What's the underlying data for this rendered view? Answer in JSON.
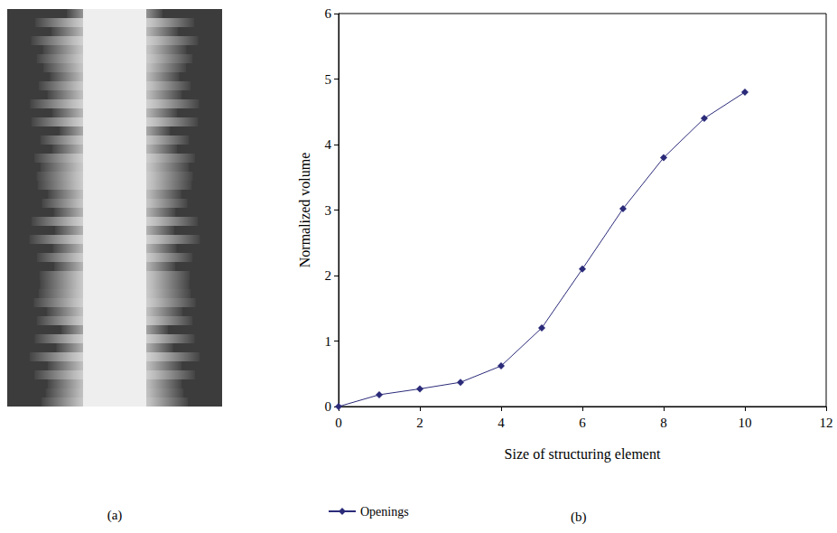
{
  "image_panel": {
    "label": "(a)"
  },
  "chart_data": {
    "type": "line",
    "panel_label": "(b)",
    "x_label": "Size of structuring element",
    "y_label": "Normalized volume",
    "x": [
      0,
      1,
      2,
      3,
      4,
      5,
      6,
      7,
      8,
      9,
      10
    ],
    "series": [
      {
        "name": "Openings",
        "color": "#2b2b7a",
        "marker": "diamond",
        "line_style": "solid",
        "values": [
          0,
          0.18,
          0.27,
          0.37,
          0.62,
          1.2,
          2.1,
          3.02,
          3.8,
          4.4,
          4.8
        ]
      }
    ],
    "xlim": [
      0,
      12
    ],
    "xticks": [
      0,
      2,
      4,
      6,
      8,
      10,
      12
    ],
    "ylim": [
      0,
      6
    ],
    "yticks": [
      0,
      1,
      2,
      3,
      4,
      5,
      6
    ],
    "grid": false,
    "legend": "bottom-left"
  }
}
